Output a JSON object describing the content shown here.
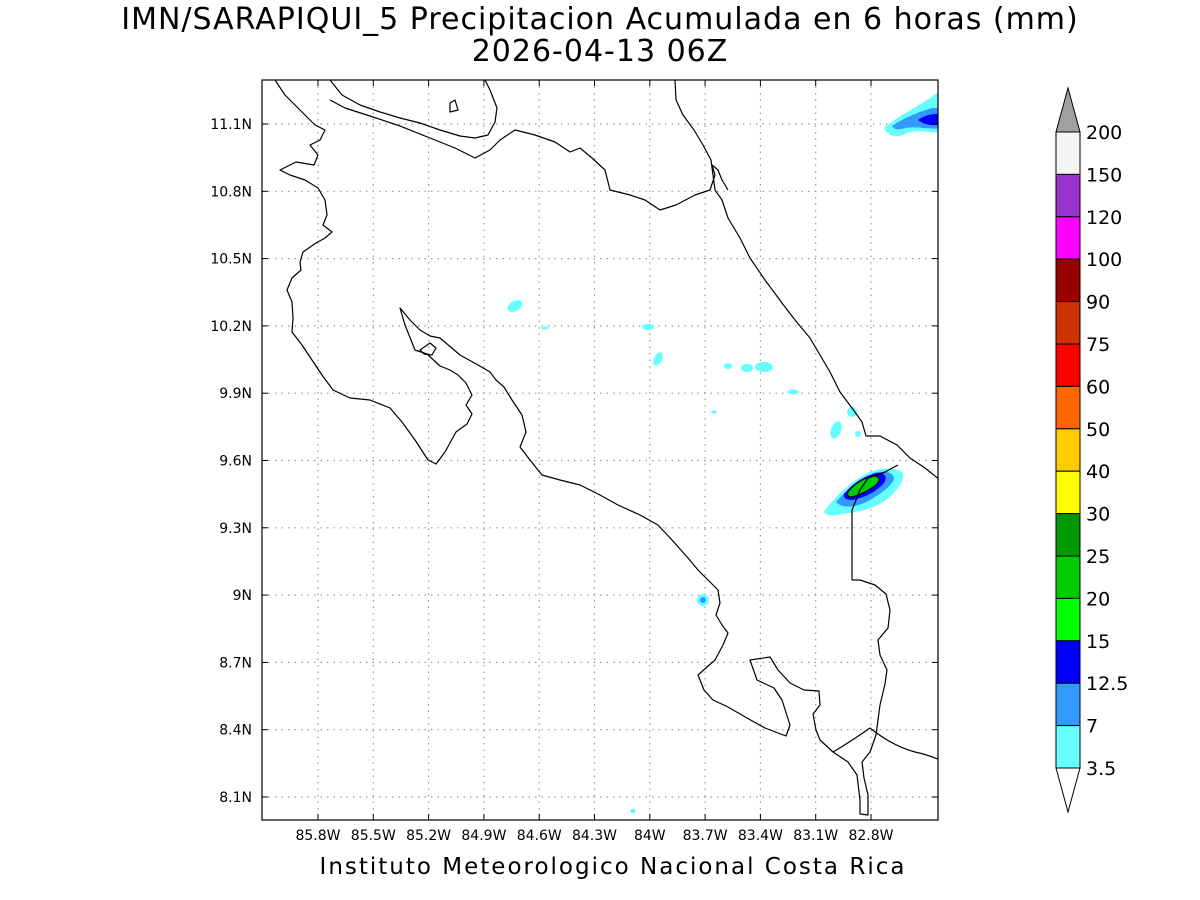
{
  "title": {
    "line1": "IMN/SARAPIQUI_5 Precipitacion Acumulada en 6 horas (mm)",
    "line2": "2026-04-13 06Z"
  },
  "footer": "Instituto Meteorologico Nacional Costa Rica",
  "map": {
    "lon_ticks": [
      "85.8W",
      "85.5W",
      "85.2W",
      "84.9W",
      "84.6W",
      "84.3W",
      "84W",
      "83.7W",
      "83.4W",
      "83.1W",
      "82.8W"
    ],
    "lat_ticks": [
      "11.1N",
      "10.8N",
      "10.5N",
      "10.2N",
      "9.9N",
      "9.6N",
      "9.3N",
      "9N",
      "8.7N",
      "8.4N",
      "8.1N"
    ],
    "grid": true
  },
  "colorbar": {
    "labels": [
      "200",
      "150",
      "120",
      "100",
      "90",
      "75",
      "60",
      "50",
      "40",
      "30",
      "25",
      "20",
      "15",
      "12.5",
      "7",
      "3.5"
    ],
    "colors": [
      "#f5f5f5",
      "#9933cc",
      "#ff00ff",
      "#990000",
      "#cc3300",
      "#ff0000",
      "#ff6600",
      "#ffcc00",
      "#ffff00",
      "#009900",
      "#00cc00",
      "#00ff00",
      "#0000ff",
      "#3399ff",
      "#66ffff"
    ],
    "top_triangle_color": "#a0a0a0",
    "bottom_triangle_color": "#ffffff"
  },
  "precip_colors": {
    "light": "#66ffff",
    "moderate": "#3399ff",
    "heavy": "#0000ff",
    "very_heavy": "#00cc00"
  }
}
